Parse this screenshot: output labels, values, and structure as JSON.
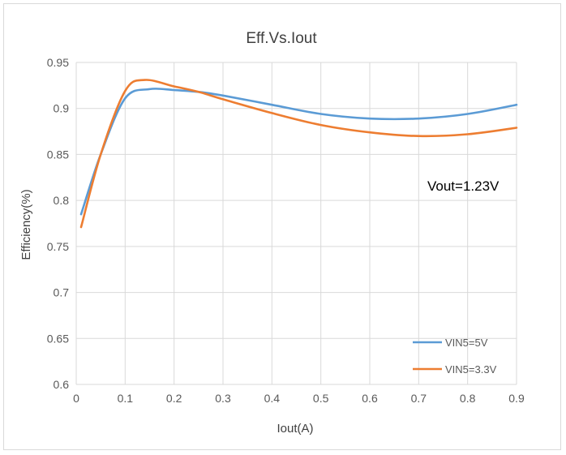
{
  "chart_data": {
    "type": "line",
    "title": "Eff.Vs.Iout",
    "xlabel": "Iout(A)",
    "ylabel": "Efficiency(%)",
    "xlim": [
      0,
      0.9
    ],
    "ylim": [
      0.6,
      0.95
    ],
    "x_ticks": [
      "0",
      "0.1",
      "0.2",
      "0.3",
      "0.4",
      "0.5",
      "0.6",
      "0.7",
      "0.8",
      "0.9"
    ],
    "y_ticks": [
      "0.6",
      "0.65",
      "0.7",
      "0.75",
      "0.8",
      "0.85",
      "0.9",
      "0.95"
    ],
    "grid": true,
    "legend_position": "bottom-right",
    "annotation": "Vout=1.23V",
    "series": [
      {
        "name": "VIN5=5V",
        "color": "#5B9BD5",
        "points": [
          [
            0.01,
            0.785
          ],
          [
            0.05,
            0.85
          ],
          [
            0.1,
            0.911
          ],
          [
            0.15,
            0.921
          ],
          [
            0.2,
            0.92
          ],
          [
            0.25,
            0.918
          ],
          [
            0.3,
            0.914
          ],
          [
            0.4,
            0.904
          ],
          [
            0.5,
            0.894
          ],
          [
            0.6,
            0.889
          ],
          [
            0.7,
            0.889
          ],
          [
            0.8,
            0.894
          ],
          [
            0.9,
            0.904
          ]
        ]
      },
      {
        "name": "VIN5=3.3V",
        "color": "#ED7D31",
        "points": [
          [
            0.01,
            0.771
          ],
          [
            0.05,
            0.85
          ],
          [
            0.1,
            0.919
          ],
          [
            0.14,
            0.931
          ],
          [
            0.2,
            0.924
          ],
          [
            0.25,
            0.918
          ],
          [
            0.3,
            0.91
          ],
          [
            0.4,
            0.895
          ],
          [
            0.5,
            0.882
          ],
          [
            0.6,
            0.874
          ],
          [
            0.7,
            0.87
          ],
          [
            0.8,
            0.872
          ],
          [
            0.9,
            0.879
          ]
        ]
      }
    ]
  }
}
